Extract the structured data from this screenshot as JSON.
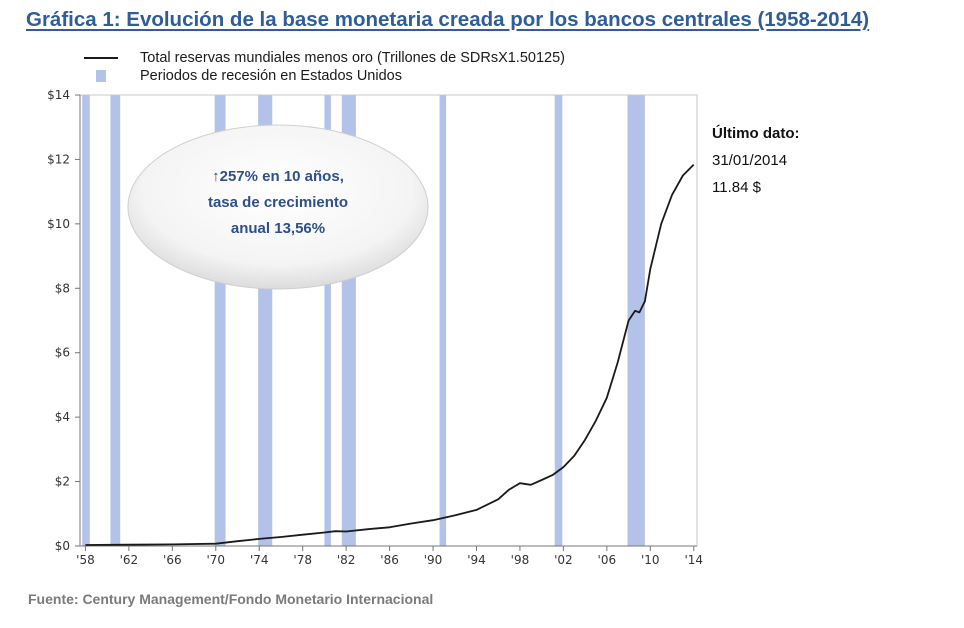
{
  "title": "Gráfica 1: Evolución de la base monetaria creada por los bancos centrales (1958-2014)",
  "legend": {
    "line_label": "Total reservas mundiales menos oro (Trillones de SDRsX1.50125)",
    "band_label": "Periodos de recesión en Estados Unidos"
  },
  "annotation": {
    "line1": "↑257% en 10 años,",
    "line2": "tasa de crecimiento",
    "line3": "anual 13,56%"
  },
  "last_data": {
    "heading": "Último dato:",
    "date": "31/01/2014",
    "value": "11.84 $"
  },
  "source": "Fuente: Century Management/Fondo Monetario Internacional",
  "colors": {
    "title": "#2e5d9a",
    "recession": "#b3c2e8",
    "line": "#1a1a1a",
    "annotation": "#2e4f8a"
  },
  "chart_data": {
    "type": "line",
    "xlim": [
      1957.5,
      2014.3
    ],
    "ylim": [
      0,
      14
    ],
    "x_ticks": [
      1958,
      1962,
      1966,
      1970,
      1974,
      1978,
      1982,
      1986,
      1990,
      1994,
      1998,
      2002,
      2006,
      2010,
      2014
    ],
    "x_tick_labels": [
      "'58",
      "'62",
      "'66",
      "'70",
      "'74",
      "'78",
      "'82",
      "'86",
      "'90",
      "'94",
      "'98",
      "'02",
      "'06",
      "'10",
      "'14"
    ],
    "y_ticks": [
      0,
      2,
      4,
      6,
      8,
      10,
      12,
      14
    ],
    "y_tick_labels": [
      "$0",
      "$2",
      "$4",
      "$6",
      "$8",
      "$10",
      "$12",
      "$14"
    ],
    "grid": false,
    "legend_position": "top-left",
    "recessions": [
      [
        1957.7,
        1958.4
      ],
      [
        1960.3,
        1961.2
      ],
      [
        1969.9,
        1970.9
      ],
      [
        1973.9,
        1975.2
      ],
      [
        1980.0,
        1980.6
      ],
      [
        1981.6,
        1982.9
      ],
      [
        1990.6,
        1991.2
      ],
      [
        2001.2,
        2001.9
      ],
      [
        2007.9,
        2009.5
      ]
    ],
    "series": [
      {
        "x": [
          1958,
          1962,
          1966,
          1970,
          1972,
          1974,
          1976,
          1978,
          1980,
          1981,
          1982,
          1984,
          1986,
          1988,
          1990,
          1992,
          1994,
          1996,
          1997,
          1998,
          1999,
          2000,
          2001,
          2002,
          2003,
          2004,
          2005,
          2006,
          2007,
          2008,
          2008.6,
          2009,
          2009.5,
          2010,
          2011,
          2012,
          2013,
          2014
        ],
        "y": [
          0.03,
          0.04,
          0.05,
          0.07,
          0.15,
          0.22,
          0.28,
          0.35,
          0.42,
          0.46,
          0.45,
          0.52,
          0.58,
          0.7,
          0.8,
          0.95,
          1.12,
          1.45,
          1.75,
          1.95,
          1.9,
          2.05,
          2.2,
          2.45,
          2.8,
          3.3,
          3.9,
          4.6,
          5.7,
          7.0,
          7.3,
          7.25,
          7.6,
          8.6,
          10.0,
          10.9,
          11.5,
          11.84
        ]
      }
    ]
  }
}
